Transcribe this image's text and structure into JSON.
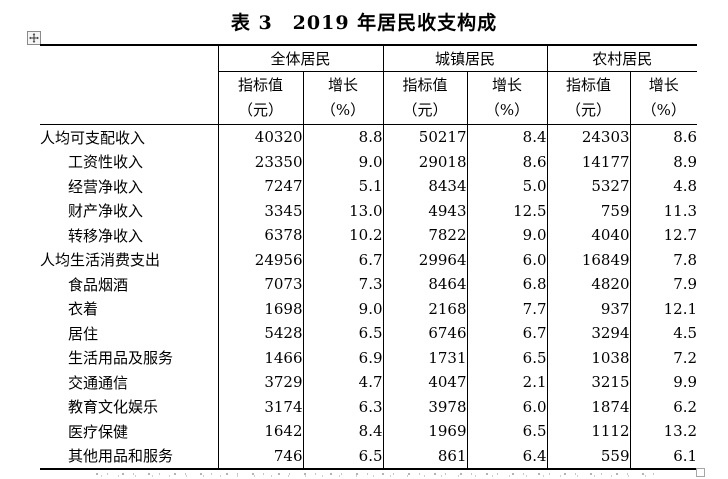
{
  "page": {
    "title": "表 3　2019 年居民收支构成"
  },
  "colors": {
    "text": "#000000",
    "border": "#000000",
    "handle_border": "#8a8a8a",
    "background": "#ffffff"
  },
  "icons": {
    "move_handle": "move-cross-icon",
    "resize_handle": "resize-square-icon"
  },
  "table": {
    "groups": [
      {
        "label": "全体居民"
      },
      {
        "label": "城镇居民"
      },
      {
        "label": "农村居民"
      }
    ],
    "sub_headers": {
      "value_line1": "指标值",
      "value_line2": "（元）",
      "growth_line1": "增长",
      "growth_line2": "（%）"
    },
    "rows": [
      {
        "label": "人均可支配收入",
        "indent": 0,
        "values": [
          "40320",
          "8.8",
          "50217",
          "8.4",
          "24303",
          "8.6"
        ]
      },
      {
        "label": "工资性收入",
        "indent": 1,
        "values": [
          "23350",
          "9.0",
          "29018",
          "8.6",
          "14177",
          "8.9"
        ]
      },
      {
        "label": "经营净收入",
        "indent": 1,
        "values": [
          "7247",
          "5.1",
          "8434",
          "5.0",
          "5327",
          "4.8"
        ]
      },
      {
        "label": "财产净收入",
        "indent": 1,
        "values": [
          "3345",
          "13.0",
          "4943",
          "12.5",
          "759",
          "11.3"
        ]
      },
      {
        "label": "转移净收入",
        "indent": 1,
        "values": [
          "6378",
          "10.2",
          "7822",
          "9.0",
          "4040",
          "12.7"
        ]
      },
      {
        "label": "人均生活消费支出",
        "indent": 0,
        "values": [
          "24956",
          "6.7",
          "29964",
          "6.0",
          "16849",
          "7.8"
        ]
      },
      {
        "label": "食品烟酒",
        "indent": 1,
        "values": [
          "7073",
          "7.3",
          "8464",
          "6.8",
          "4820",
          "7.9"
        ]
      },
      {
        "label": "衣着",
        "indent": 1,
        "values": [
          "1698",
          "9.0",
          "2168",
          "7.7",
          "937",
          "12.1"
        ]
      },
      {
        "label": "居住",
        "indent": 1,
        "values": [
          "5428",
          "6.5",
          "6746",
          "6.7",
          "3294",
          "4.5"
        ]
      },
      {
        "label": "生活用品及服务",
        "indent": 1,
        "values": [
          "1466",
          "6.9",
          "1731",
          "6.5",
          "1038",
          "7.2"
        ]
      },
      {
        "label": "交通通信",
        "indent": 1,
        "values": [
          "3729",
          "4.7",
          "4047",
          "2.1",
          "3215",
          "9.9"
        ]
      },
      {
        "label": "教育文化娱乐",
        "indent": 1,
        "values": [
          "3174",
          "6.3",
          "3978",
          "6.0",
          "1874",
          "6.2"
        ]
      },
      {
        "label": "医疗保健",
        "indent": 1,
        "values": [
          "1642",
          "8.4",
          "1969",
          "6.5",
          "1112",
          "13.2"
        ]
      },
      {
        "label": "其他用品和服务",
        "indent": 1,
        "values": [
          "746",
          "6.5",
          "861",
          "6.4",
          "559",
          "6.1"
        ]
      }
    ]
  }
}
